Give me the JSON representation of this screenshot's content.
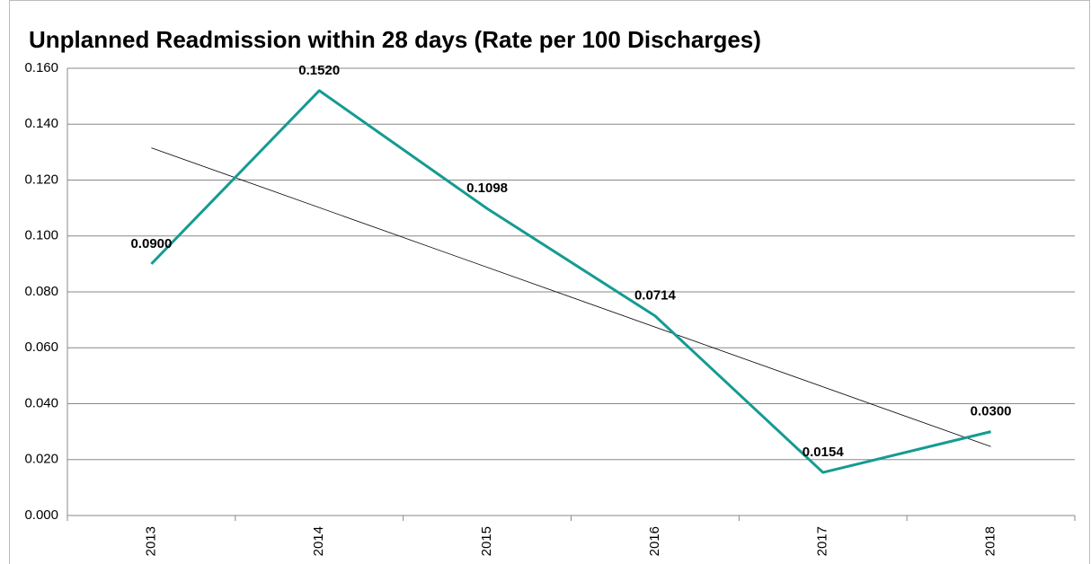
{
  "chart_data": {
    "type": "line",
    "title": "Unplanned Readmission within 28 days (Rate per 100 Discharges)",
    "categories": [
      "2013",
      "2014",
      "2015",
      "2016",
      "2017",
      "2018"
    ],
    "series": [
      {
        "color": "#149b92",
        "values": [
          0.09,
          0.152,
          0.1098,
          0.0714,
          0.0154,
          0.03
        ],
        "value_labels": [
          "0.0900",
          "0.1520",
          "0.1098",
          "0.0714",
          "0.0154",
          "0.0300"
        ]
      }
    ],
    "ylim": [
      0,
      0.16
    ],
    "yticks": [
      {
        "value": 0,
        "label": "0.000"
      },
      {
        "value": 0.02,
        "label": "0.020"
      },
      {
        "value": 0.04,
        "label": "0.040"
      },
      {
        "value": 0.06,
        "label": "0.060"
      },
      {
        "value": 0.08,
        "label": "0.080"
      },
      {
        "value": 0.1,
        "label": "0.100"
      },
      {
        "value": 0.12,
        "label": "0.120"
      },
      {
        "value": 0.14,
        "label": "0.140"
      },
      {
        "value": 0.16,
        "label": "0.160"
      }
    ],
    "grid": true,
    "trendline": true
  }
}
